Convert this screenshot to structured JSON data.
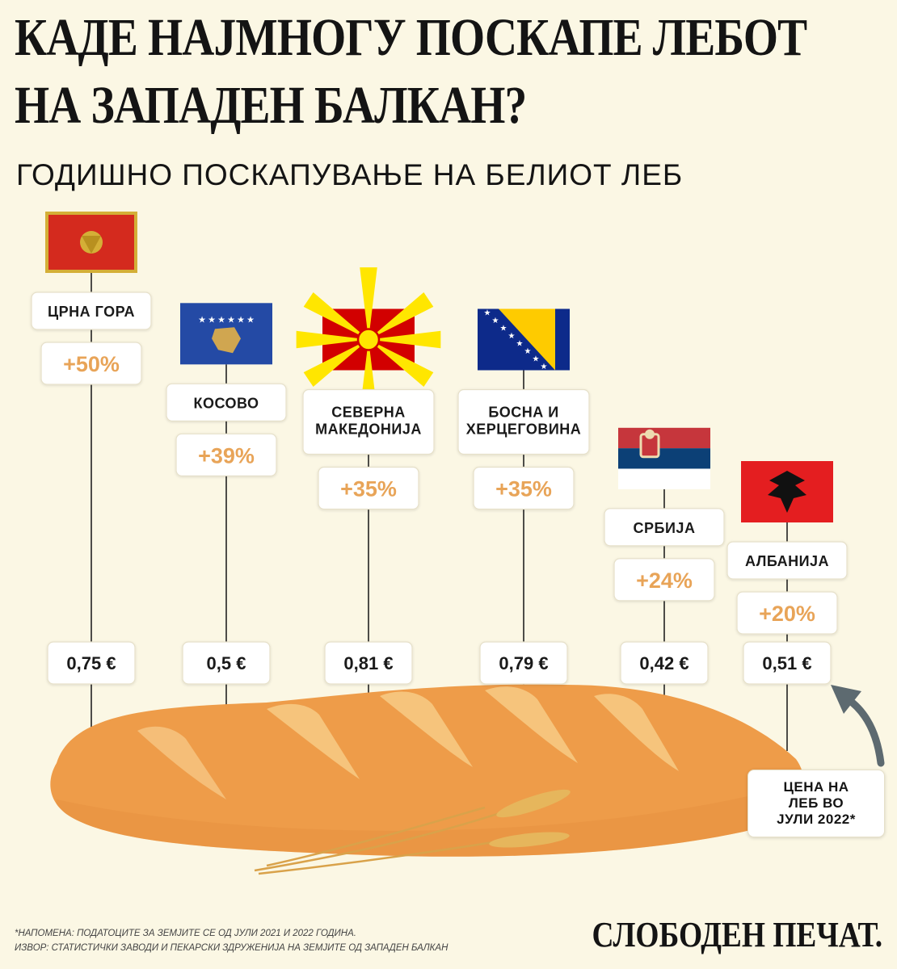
{
  "header": {
    "title_line1": "КАДЕ НАЈМНОГУ ПОСКАПЕ ЛЕБОТ",
    "title_line2": "НА ЗАПАДЕН БАЛКАН?",
    "subtitle": "ГОДИШНО ПОСКАПУВАЊЕ НА БЕЛИОТ ЛЕБ"
  },
  "chart_data": {
    "type": "bar",
    "countries": [
      {
        "label_lines": [
          "ЦРНА ГОРА"
        ],
        "increase_pct": 50,
        "increase_label": "+50%",
        "price_eur": 0.75,
        "price_label": "0,75 €",
        "flag": "montenegro-flag-icon"
      },
      {
        "label_lines": [
          "КОСОВО"
        ],
        "increase_pct": 39,
        "increase_label": "+39%",
        "price_eur": 0.5,
        "price_label": "0,5 €",
        "flag": "kosovo-flag-icon"
      },
      {
        "label_lines": [
          "СЕВЕРНА",
          "МАКЕДОНИЈА"
        ],
        "increase_pct": 35,
        "increase_label": "+35%",
        "price_eur": 0.81,
        "price_label": "0,81 €",
        "flag": "north-macedonia-flag-icon"
      },
      {
        "label_lines": [
          "БОСНА И",
          "ХЕРЦЕГОВИНА"
        ],
        "increase_pct": 35,
        "increase_label": "+35%",
        "price_eur": 0.79,
        "price_label": "0,79 €",
        "flag": "bosnia-flag-icon"
      },
      {
        "label_lines": [
          "СРБИЈА"
        ],
        "increase_pct": 24,
        "increase_label": "+24%",
        "price_eur": 0.42,
        "price_label": "0,42 €",
        "flag": "serbia-flag-icon"
      },
      {
        "label_lines": [
          "АЛБАНИЈА"
        ],
        "increase_pct": 20,
        "increase_label": "+20%",
        "price_eur": 0.51,
        "price_label": "0,51 €",
        "flag": "albania-flag-icon"
      }
    ],
    "colors": {
      "accent": "#e8a458",
      "bread": "#ee9c49",
      "bread_slash": "#f6c47c",
      "background": "#fbf7e4"
    }
  },
  "callout": {
    "lines": [
      "ЦЕНА НА",
      "ЛЕБ ВО",
      "ЈУЛИ 2022*"
    ]
  },
  "footer": {
    "note": "*НАПОМЕНА: ПОДАТОЦИТЕ ЗА ЗЕМЈИТЕ СЕ ОД ЈУЛИ 2021 И 2022 ГОДИНА.",
    "source": "ИЗВОР: СТАТИСТИЧКИ ЗАВОДИ И ПЕКАРСКИ ЗДРУЖЕНИЈА НА ЗЕМЈИТЕ ОД ЗАПАДЕН БАЛКАН",
    "brand": "СЛОБОДЕН ПЕЧАТ."
  }
}
